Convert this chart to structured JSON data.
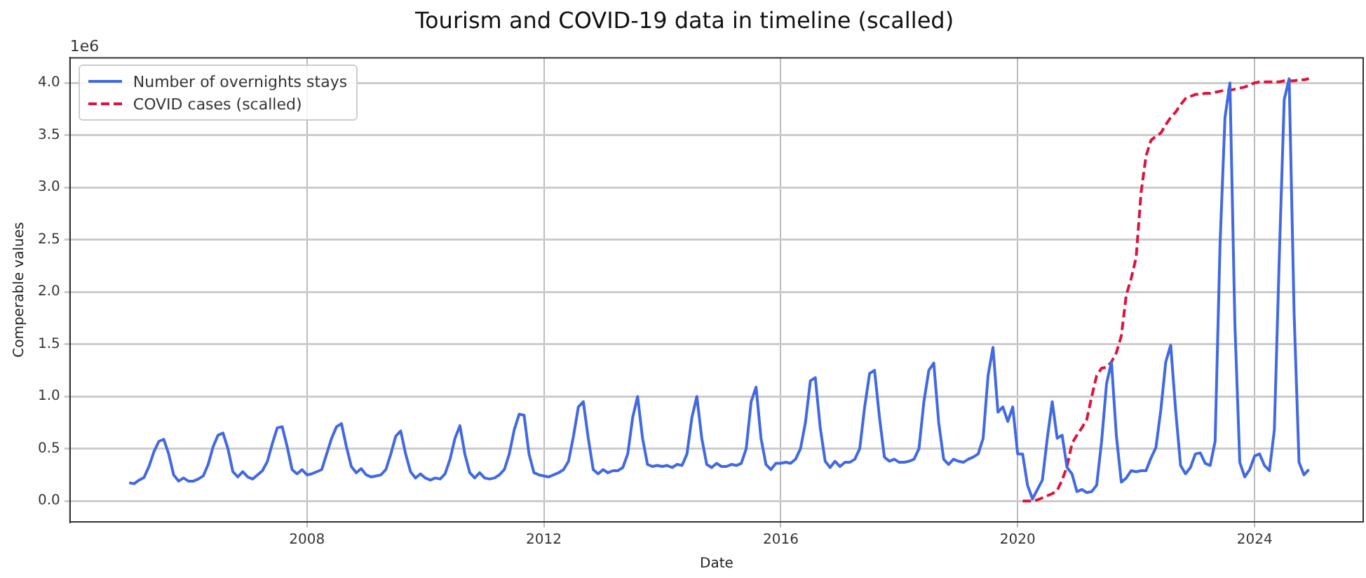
{
  "chart_data": {
    "type": "line",
    "title": "Tourism and COVID-19 data in timeline (scalled)",
    "xlabel": "Date",
    "ylabel": "Comperable values",
    "annotations": [
      "1e6"
    ],
    "x": [
      "2005-01",
      "2005-02",
      "2005-03",
      "2005-04",
      "2005-05",
      "2005-06",
      "2005-07",
      "2005-08",
      "2005-09",
      "2005-10",
      "2005-11",
      "2005-12",
      "2006-01",
      "2006-02",
      "2006-03",
      "2006-04",
      "2006-05",
      "2006-06",
      "2006-07",
      "2006-08",
      "2006-09",
      "2006-10",
      "2006-11",
      "2006-12",
      "2007-01",
      "2007-02",
      "2007-03",
      "2007-04",
      "2007-05",
      "2007-06",
      "2007-07",
      "2007-08",
      "2007-09",
      "2007-10",
      "2007-11",
      "2007-12",
      "2008-01",
      "2008-02",
      "2008-03",
      "2008-04",
      "2008-05",
      "2008-06",
      "2008-07",
      "2008-08",
      "2008-09",
      "2008-10",
      "2008-11",
      "2008-12",
      "2009-01",
      "2009-02",
      "2009-03",
      "2009-04",
      "2009-05",
      "2009-06",
      "2009-07",
      "2009-08",
      "2009-09",
      "2009-10",
      "2009-11",
      "2009-12",
      "2010-01",
      "2010-02",
      "2010-03",
      "2010-04",
      "2010-05",
      "2010-06",
      "2010-07",
      "2010-08",
      "2010-09",
      "2010-10",
      "2010-11",
      "2010-12",
      "2011-01",
      "2011-02",
      "2011-03",
      "2011-04",
      "2011-05",
      "2011-06",
      "2011-07",
      "2011-08",
      "2011-09",
      "2011-10",
      "2011-11",
      "2011-12",
      "2012-01",
      "2012-02",
      "2012-03",
      "2012-04",
      "2012-05",
      "2012-06",
      "2012-07",
      "2012-08",
      "2012-09",
      "2012-10",
      "2012-11",
      "2012-12",
      "2013-01",
      "2013-02",
      "2013-03",
      "2013-04",
      "2013-05",
      "2013-06",
      "2013-07",
      "2013-08",
      "2013-09",
      "2013-10",
      "2013-11",
      "2013-12",
      "2014-01",
      "2014-02",
      "2014-03",
      "2014-04",
      "2014-05",
      "2014-06",
      "2014-07",
      "2014-08",
      "2014-09",
      "2014-10",
      "2014-11",
      "2014-12",
      "2015-01",
      "2015-02",
      "2015-03",
      "2015-04",
      "2015-05",
      "2015-06",
      "2015-07",
      "2015-08",
      "2015-09",
      "2015-10",
      "2015-11",
      "2015-12",
      "2016-01",
      "2016-02",
      "2016-03",
      "2016-04",
      "2016-05",
      "2016-06",
      "2016-07",
      "2016-08",
      "2016-09",
      "2016-10",
      "2016-11",
      "2016-12",
      "2017-01",
      "2017-02",
      "2017-03",
      "2017-04",
      "2017-05",
      "2017-06",
      "2017-07",
      "2017-08",
      "2017-09",
      "2017-10",
      "2017-11",
      "2017-12",
      "2018-01",
      "2018-02",
      "2018-03",
      "2018-04",
      "2018-05",
      "2018-06",
      "2018-07",
      "2018-08",
      "2018-09",
      "2018-10",
      "2018-11",
      "2018-12",
      "2019-01",
      "2019-02",
      "2019-03",
      "2019-04",
      "2019-05",
      "2019-06",
      "2019-07",
      "2019-08",
      "2019-09",
      "2019-10",
      "2019-11",
      "2019-12",
      "2020-01",
      "2020-02",
      "2020-03",
      "2020-04",
      "2020-05",
      "2020-06",
      "2020-07",
      "2020-08",
      "2020-09",
      "2020-10",
      "2020-11",
      "2020-12",
      "2021-01",
      "2021-02",
      "2021-03",
      "2021-04",
      "2021-05",
      "2021-06",
      "2021-07",
      "2021-08",
      "2021-09",
      "2021-10",
      "2021-11",
      "2021-12",
      "2022-01",
      "2022-02",
      "2022-03",
      "2022-04",
      "2022-05",
      "2022-06",
      "2022-07",
      "2022-08",
      "2022-09",
      "2022-10",
      "2022-11",
      "2022-12",
      "2023-01",
      "2023-02",
      "2023-03",
      "2023-04",
      "2023-05",
      "2023-06",
      "2023-07",
      "2023-08",
      "2023-09",
      "2023-10",
      "2023-11",
      "2023-12",
      "2024-01",
      "2024-02",
      "2024-03",
      "2024-04",
      "2024-05",
      "2024-06",
      "2024-07",
      "2024-08",
      "2024-09",
      "2024-10",
      "2024-11",
      "2024-12"
    ],
    "series": [
      {
        "name": "Number of overnights stays",
        "color": "#4169e1",
        "line_style": "solid",
        "values": [
          0.175,
          0.165,
          0.2,
          0.225,
          0.33,
          0.47,
          0.57,
          0.59,
          0.45,
          0.25,
          0.19,
          0.22,
          0.19,
          0.19,
          0.21,
          0.24,
          0.35,
          0.52,
          0.63,
          0.65,
          0.5,
          0.28,
          0.23,
          0.28,
          0.23,
          0.21,
          0.25,
          0.29,
          0.38,
          0.55,
          0.7,
          0.71,
          0.52,
          0.3,
          0.26,
          0.3,
          0.25,
          0.26,
          0.28,
          0.3,
          0.45,
          0.6,
          0.71,
          0.74,
          0.52,
          0.33,
          0.27,
          0.31,
          0.25,
          0.23,
          0.24,
          0.25,
          0.3,
          0.45,
          0.62,
          0.67,
          0.45,
          0.28,
          0.22,
          0.26,
          0.22,
          0.2,
          0.22,
          0.21,
          0.26,
          0.4,
          0.6,
          0.72,
          0.45,
          0.27,
          0.22,
          0.27,
          0.22,
          0.21,
          0.22,
          0.25,
          0.3,
          0.45,
          0.68,
          0.83,
          0.82,
          0.45,
          0.27,
          0.25,
          0.24,
          0.23,
          0.25,
          0.27,
          0.3,
          0.38,
          0.62,
          0.9,
          0.95,
          0.6,
          0.3,
          0.26,
          0.3,
          0.27,
          0.29,
          0.29,
          0.32,
          0.45,
          0.8,
          1.0,
          0.6,
          0.35,
          0.33,
          0.34,
          0.33,
          0.34,
          0.32,
          0.35,
          0.34,
          0.45,
          0.8,
          1.0,
          0.6,
          0.35,
          0.32,
          0.36,
          0.33,
          0.33,
          0.35,
          0.34,
          0.36,
          0.5,
          0.95,
          1.09,
          0.6,
          0.35,
          0.3,
          0.36,
          0.36,
          0.37,
          0.36,
          0.4,
          0.5,
          0.75,
          1.15,
          1.18,
          0.7,
          0.38,
          0.32,
          0.38,
          0.33,
          0.37,
          0.37,
          0.4,
          0.5,
          0.9,
          1.22,
          1.25,
          0.8,
          0.42,
          0.38,
          0.4,
          0.37,
          0.37,
          0.38,
          0.4,
          0.5,
          0.95,
          1.25,
          1.32,
          0.75,
          0.4,
          0.35,
          0.4,
          0.38,
          0.37,
          0.4,
          0.42,
          0.45,
          0.6,
          1.2,
          1.47,
          0.85,
          0.9,
          0.76,
          0.9,
          0.45,
          0.45,
          0.15,
          0.02,
          0.11,
          0.2,
          0.6,
          0.95,
          0.6,
          0.63,
          0.32,
          0.26,
          0.09,
          0.11,
          0.08,
          0.09,
          0.15,
          0.57,
          1.12,
          1.33,
          0.62,
          0.18,
          0.22,
          0.29,
          0.28,
          0.29,
          0.29,
          0.41,
          0.51,
          0.87,
          1.33,
          1.49,
          0.87,
          0.34,
          0.26,
          0.32,
          0.45,
          0.46,
          0.36,
          0.34,
          0.57,
          2.46,
          3.67,
          4.0,
          1.7,
          0.37,
          0.23,
          0.3,
          0.43,
          0.45,
          0.34,
          0.29,
          0.68,
          2.33,
          3.84,
          4.04,
          1.8,
          0.37,
          0.25,
          0.3
        ]
      },
      {
        "name": "COVID cases (scalled)",
        "color": "#dc143c",
        "line_style": "dashed",
        "x": [
          "2020-02",
          "2020-03",
          "2020-04",
          "2020-05",
          "2020-06",
          "2020-07",
          "2020-08",
          "2020-09",
          "2020-10",
          "2020-11",
          "2020-12",
          "2021-01",
          "2021-02",
          "2021-03",
          "2021-04",
          "2021-05",
          "2021-06",
          "2021-07",
          "2021-08",
          "2021-09",
          "2021-10",
          "2021-11",
          "2021-12",
          "2022-01",
          "2022-02",
          "2022-03",
          "2022-04",
          "2022-05",
          "2022-06",
          "2022-07",
          "2022-08",
          "2022-09",
          "2022-10",
          "2022-11",
          "2022-12",
          "2023-01",
          "2023-02",
          "2023-03",
          "2023-04",
          "2023-05",
          "2023-06",
          "2023-07",
          "2023-08",
          "2023-09",
          "2023-10",
          "2023-11",
          "2023-12",
          "2024-01",
          "2024-02",
          "2024-03",
          "2024-04",
          "2024-05",
          "2024-06",
          "2024-07",
          "2024-08",
          "2024-09",
          "2024-10",
          "2024-11",
          "2024-12"
        ],
        "values": [
          0.0,
          0.0,
          0.0,
          0.01,
          0.03,
          0.05,
          0.07,
          0.1,
          0.2,
          0.33,
          0.55,
          0.63,
          0.7,
          0.78,
          1.0,
          1.2,
          1.27,
          1.28,
          1.33,
          1.42,
          1.58,
          1.97,
          2.13,
          2.33,
          2.95,
          3.3,
          3.45,
          3.49,
          3.52,
          3.6,
          3.67,
          3.72,
          3.79,
          3.85,
          3.87,
          3.89,
          3.89,
          3.9,
          3.9,
          3.91,
          3.92,
          3.93,
          3.93,
          3.94,
          3.95,
          3.96,
          3.98,
          4.0,
          4.01,
          4.01,
          4.01,
          4.01,
          4.01,
          4.02,
          4.02,
          4.02,
          4.03,
          4.03,
          4.04
        ]
      }
    ],
    "xlim": [
      "2004-01",
      "2025-11"
    ],
    "xticks": [
      "2008",
      "2012",
      "2016",
      "2020",
      "2024"
    ],
    "ylim": [
      -0.2,
      4.24
    ],
    "yticks": [
      {
        "value": 0,
        "label": "0.0"
      },
      {
        "value": 0.5,
        "label": "0.5"
      },
      {
        "value": 1,
        "label": "1.0"
      },
      {
        "value": 1.5,
        "label": "1.5"
      },
      {
        "value": 2,
        "label": "2.0"
      },
      {
        "value": 2.5,
        "label": "2.5"
      },
      {
        "value": 3,
        "label": "3.0"
      },
      {
        "value": 3.5,
        "label": "3.5"
      },
      {
        "value": 4,
        "label": "4.0"
      }
    ],
    "grid": true,
    "legend": "top left",
    "marker": "none"
  }
}
